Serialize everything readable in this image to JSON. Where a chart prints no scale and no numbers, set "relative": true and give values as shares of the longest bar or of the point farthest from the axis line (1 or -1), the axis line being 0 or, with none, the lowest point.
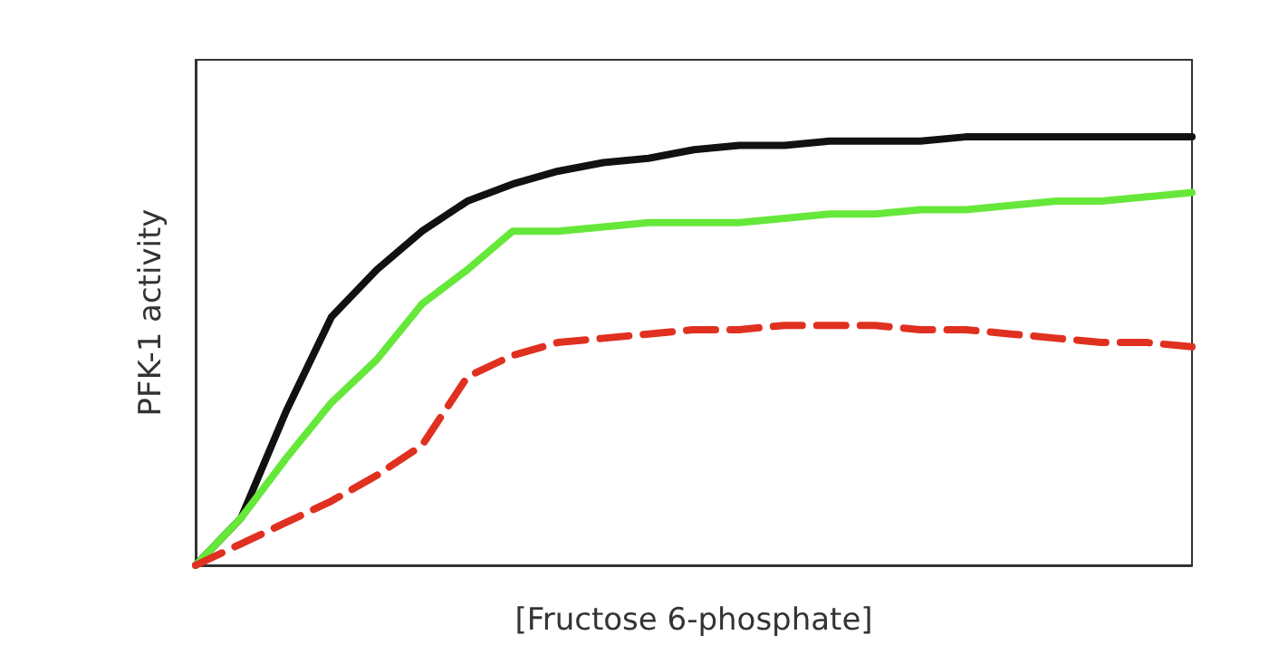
{
  "chart_data": {
    "type": "line",
    "relative": true,
    "xlabel": "[Fructose 6-phosphate]",
    "ylabel": "PFK-1 activity",
    "grid": false,
    "marker": "none",
    "categories": [
      null,
      null,
      null,
      null,
      null,
      null,
      null,
      null,
      null,
      null,
      null,
      null,
      null,
      null,
      null,
      null,
      null,
      null,
      null,
      null,
      null,
      null,
      null
    ],
    "series": [
      {
        "color": "#111111",
        "line_style": "solid",
        "values": [
          0,
          0.11,
          0.36,
          0.58,
          0.69,
          0.78,
          0.85,
          0.89,
          0.92,
          0.94,
          0.95,
          0.97,
          0.98,
          0.98,
          0.99,
          0.99,
          0.99,
          1,
          1,
          1,
          1,
          1,
          1
        ]
      },
      {
        "color": "#66e83a",
        "line_style": "solid",
        "values": [
          0,
          0.11,
          0.25,
          0.38,
          0.48,
          0.61,
          0.69,
          0.78,
          0.78,
          0.79,
          0.8,
          0.8,
          0.8,
          0.81,
          0.82,
          0.82,
          0.83,
          0.83,
          0.84,
          0.85,
          0.85,
          0.86,
          0.87
        ]
      },
      {
        "color": "#e03020",
        "line_style": "dashed",
        "values": [
          0,
          0.05,
          0.1,
          0.15,
          0.21,
          0.28,
          0.44,
          0.49,
          0.52,
          0.53,
          0.54,
          0.55,
          0.55,
          0.56,
          0.56,
          0.56,
          0.55,
          0.55,
          0.54,
          0.53,
          0.52,
          0.52,
          0.51
        ]
      }
    ]
  }
}
